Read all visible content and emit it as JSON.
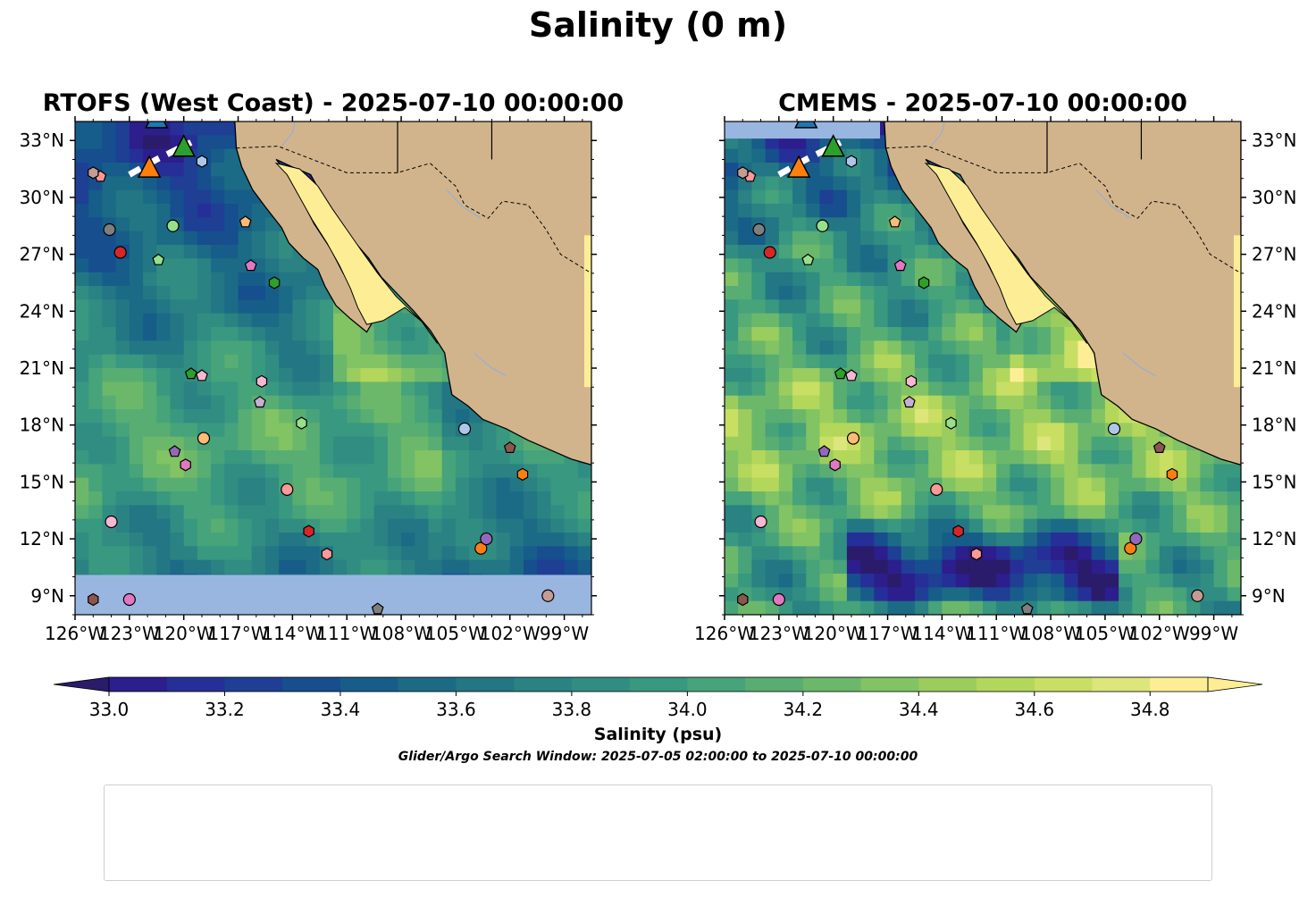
{
  "suptitle": "Salinity (0 m)",
  "panels": [
    {
      "title": "RTOFS (West Coast) - 2025-07-10 00:00:00"
    },
    {
      "title": "CMEMS - 2025-07-10 00:00:00"
    }
  ],
  "colorbar": {
    "label": "Salinity (psu)",
    "ticks": [
      "33.0",
      "33.2",
      "33.4",
      "33.6",
      "33.8",
      "34.0",
      "34.2",
      "34.4",
      "34.6",
      "34.8"
    ],
    "min": 32.9,
    "max": 34.9,
    "step": 0.1,
    "colormap": [
      "#2b1b6b",
      "#2c1e8c",
      "#262f98",
      "#1e3f94",
      "#164e8e",
      "#175d89",
      "#1c6b86",
      "#237684",
      "#2a8283",
      "#318d82",
      "#389880",
      "#46a37a",
      "#58ad73",
      "#6cb86b",
      "#82c364",
      "#9acd5e",
      "#b2d75b",
      "#c8df63",
      "#dde67a",
      "#fdee95"
    ]
  },
  "window_text": "Glider/Argo Search Window: 2025-07-05 02:00:00 to 2025-07-10 00:00:00",
  "chart_data": {
    "type": "map",
    "variable": "Salinity",
    "units": "psu",
    "depth": "0 m",
    "lon_range": [
      -126,
      -97.5
    ],
    "lat_range": [
      8,
      34
    ],
    "x_ticks": [
      "126°W",
      "123°W",
      "120°W",
      "117°W",
      "114°W",
      "111°W",
      "108°W",
      "105°W",
      "102°W",
      "99°W"
    ],
    "y_ticks": [
      "9°N",
      "12°N",
      "15°N",
      "18°N",
      "21°N",
      "24°N",
      "27°N",
      "30°N",
      "33°N"
    ],
    "floats": [
      {
        "id": "1902270",
        "color": "#1f77b4",
        "marker": "circle"
      },
      {
        "id": "1902283",
        "color": "#1f77b4",
        "marker": "hexagon"
      },
      {
        "id": "1902652",
        "color": "#1f77b4",
        "marker": "pentagon"
      },
      {
        "id": "2903857",
        "color": "#aec7e8",
        "marker": "circle",
        "lon": -104.5,
        "lat": 17.8
      },
      {
        "id": "2903886",
        "color": "#aec7e8",
        "marker": "hexagon",
        "lon": -119.0,
        "lat": 31.9
      },
      {
        "id": "3902277",
        "color": "#ff7f0e",
        "marker": "pentagon"
      },
      {
        "id": "3902375",
        "color": "#ff7f0e",
        "marker": "circle",
        "lon": -103.6,
        "lat": 11.5
      },
      {
        "id": "3902386",
        "color": "#ff7f0e",
        "marker": "hexagon",
        "lon": -101.3,
        "lat": 15.4
      },
      {
        "id": "4902328",
        "color": "#ffbb78",
        "marker": "pentagon",
        "lon": -116.6,
        "lat": 28.7
      },
      {
        "id": "4902332",
        "color": "#ffbb78",
        "marker": "circle",
        "lon": -118.9,
        "lat": 17.3
      },
      {
        "id": "4902475",
        "color": "#2ca02c",
        "marker": "hexagon",
        "lon": -115.0,
        "lat": 25.5
      },
      {
        "id": "4903181",
        "color": "#2ca02c",
        "marker": "pentagon",
        "lon": -119.6,
        "lat": 20.7
      },
      {
        "id": "4903182",
        "color": "#98df8a",
        "marker": "circle",
        "lon": -120.6,
        "lat": 28.5
      },
      {
        "id": "4903184",
        "color": "#98df8a",
        "marker": "hexagon",
        "lon": -113.5,
        "lat": 18.1
      },
      {
        "id": "4903185",
        "color": "#98df8a",
        "marker": "pentagon",
        "lon": -121.4,
        "lat": 26.7
      },
      {
        "id": "4903195",
        "color": "#d62728",
        "marker": "circle",
        "lon": -123.5,
        "lat": 27.1
      },
      {
        "id": "4903200",
        "color": "#d62728",
        "marker": "hexagon",
        "lon": -113.1,
        "lat": 12.4
      },
      {
        "id": "4903294",
        "color": "#ff9896",
        "marker": "pentagon",
        "lon": -124.6,
        "lat": 31.1
      },
      {
        "id": "4903327",
        "color": "#ff9896",
        "marker": "circle",
        "lon": -114.3,
        "lat": 14.6
      },
      {
        "id": "4903399",
        "color": "#ff9896",
        "marker": "hexagon",
        "lon": -112.1,
        "lat": 11.2
      },
      {
        "id": "4903401",
        "color": "#9467bd",
        "marker": "pentagon",
        "lon": -120.5,
        "lat": 16.6
      },
      {
        "id": "4903516",
        "color": "#9467bd",
        "marker": "circle",
        "lon": -103.3,
        "lat": 12.0
      },
      {
        "id": "4903743",
        "color": "#9467bd",
        "marker": "hexagon"
      },
      {
        "id": "5905300",
        "color": "#c5b0d5",
        "marker": "pentagon",
        "lon": -115.8,
        "lat": 19.2
      },
      {
        "id": "5906017",
        "color": "#c5b0d5",
        "marker": "circle"
      },
      {
        "id": "5906022",
        "color": "#8c564b",
        "marker": "hexagon",
        "lon": -125.0,
        "lat": 8.8
      },
      {
        "id": "5906023",
        "color": "#8c564b",
        "marker": "pentagon",
        "lon": -102.0,
        "lat": 16.8
      },
      {
        "id": "5906090",
        "color": "#c49c94",
        "marker": "circle",
        "lon": -99.9,
        "lat": 9.0
      },
      {
        "id": "5906183",
        "color": "#c49c94",
        "marker": "hexagon",
        "lon": -125.0,
        "lat": 31.3
      },
      {
        "id": "5906294",
        "color": "#f7b6d2",
        "marker": "pentagon",
        "lon": -119.0,
        "lat": 20.6
      },
      {
        "id": "5906405",
        "color": "#e377c2",
        "marker": "circle",
        "lon": -123.0,
        "lat": 8.8
      },
      {
        "id": "5906449",
        "color": "#e377c2",
        "marker": "hexagon",
        "lon": -119.9,
        "lat": 15.9
      },
      {
        "id": "5906798",
        "color": "#e377c2",
        "marker": "pentagon",
        "lon": -116.3,
        "lat": 26.4
      },
      {
        "id": "5906857",
        "color": "#f7b6d2",
        "marker": "circle",
        "lon": -124.0,
        "lat": 12.9
      },
      {
        "id": "5907053",
        "color": "#f7b6d2",
        "marker": "hexagon",
        "lon": -115.7,
        "lat": 20.3
      },
      {
        "id": "5907056",
        "color": "#7f7f7f",
        "marker": "pentagon",
        "lon": -109.3,
        "lat": 8.3
      },
      {
        "id": "7901100",
        "color": "#7f7f7f",
        "marker": "circle",
        "lon": -124.1,
        "lat": 28.3
      }
    ],
    "gliders": [
      {
        "id": "sp011-20250603T1557",
        "color": "#1f77b4",
        "lon": -121.5,
        "lat": 34.1
      },
      {
        "id": "sp040-20250611T1659",
        "color": "#ff7f0e",
        "lon": -121.9,
        "lat": 31.5
      },
      {
        "id": "sp058-20250625T1709",
        "color": "#2ca02c",
        "lon": -120.0,
        "lat": 32.6
      }
    ],
    "legend_placement": "bottom"
  }
}
